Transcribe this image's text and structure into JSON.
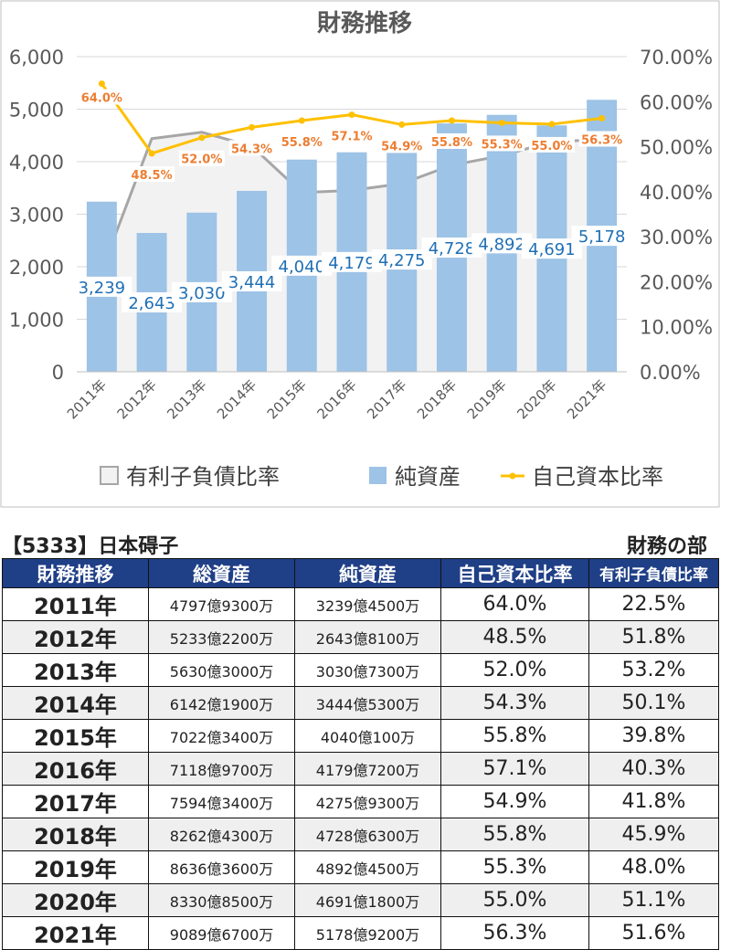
{
  "chart_data": {
    "type": "bar+line",
    "title": "財務推移",
    "categories": [
      "2011年",
      "2012年",
      "2013年",
      "2014年",
      "2015年",
      "2016年",
      "2017年",
      "2018年",
      "2019年",
      "2020年",
      "2021年"
    ],
    "left_axis": {
      "min": 0,
      "max": 6000,
      "ticks": [
        "0",
        "1,000",
        "2,000",
        "3,000",
        "4,000",
        "5,000",
        "6,000"
      ]
    },
    "right_axis": {
      "min": 0,
      "max": 70,
      "ticks": [
        "0.00%",
        "10.00%",
        "20.00%",
        "30.00%",
        "40.00%",
        "50.00%",
        "60.00%",
        "70.00%"
      ]
    },
    "series": [
      {
        "name": "有利子負債比率",
        "type": "area",
        "axis": "right",
        "color": "#a6a6a6",
        "values": [
          22.5,
          51.8,
          53.2,
          50.1,
          39.8,
          40.3,
          41.8,
          45.9,
          48.0,
          51.1,
          51.6
        ]
      },
      {
        "name": "純資産",
        "type": "bar",
        "axis": "left",
        "color": "#9dc3e6",
        "values": [
          3239,
          2643,
          3030,
          3444,
          4040,
          4179,
          4275,
          4728,
          4892,
          4691,
          5178
        ],
        "labels": [
          "3,239",
          "2,643",
          "3,030",
          "3,444",
          "4,040",
          "4,179",
          "4,275",
          "4,728",
          "4,892",
          "4,691",
          "5,178"
        ]
      },
      {
        "name": "自己資本比率",
        "type": "line",
        "axis": "right",
        "color": "#ffc000",
        "label_color": "#ed7d31",
        "values": [
          64.0,
          48.5,
          52.0,
          54.3,
          55.8,
          57.1,
          54.9,
          55.8,
          55.3,
          55.0,
          56.3
        ],
        "labels": [
          "64.0%",
          "48.5%",
          "52.0%",
          "54.3%",
          "55.8%",
          "57.1%",
          "54.9%",
          "55.8%",
          "55.3%",
          "55.0%",
          "56.3%"
        ]
      }
    ],
    "legend_position": "bottom",
    "grid": true
  },
  "company": "【5333】日本碍子",
  "section": "財務の部",
  "table": {
    "headers": [
      "財務推移",
      "総資産",
      "純資産",
      "自己資本比率",
      "有利子負債比率"
    ],
    "rows": [
      [
        "2011年",
        "4797億9300万",
        "3239億4500万",
        "64.0%",
        "22.5%"
      ],
      [
        "2012年",
        "5233億2200万",
        "2643億8100万",
        "48.5%",
        "51.8%"
      ],
      [
        "2013年",
        "5630億3000万",
        "3030億7300万",
        "52.0%",
        "53.2%"
      ],
      [
        "2014年",
        "6142億1900万",
        "3444億5300万",
        "54.3%",
        "50.1%"
      ],
      [
        "2015年",
        "7022億3400万",
        "4040億100万",
        "55.8%",
        "39.8%"
      ],
      [
        "2016年",
        "7118億9700万",
        "4179億7200万",
        "57.1%",
        "40.3%"
      ],
      [
        "2017年",
        "7594億3400万",
        "4275億9300万",
        "54.9%",
        "41.8%"
      ],
      [
        "2018年",
        "8262億4300万",
        "4728億6300万",
        "55.8%",
        "45.9%"
      ],
      [
        "2019年",
        "8636億3600万",
        "4892億4500万",
        "55.3%",
        "48.0%"
      ],
      [
        "2020年",
        "8330億8500万",
        "4691億1800万",
        "55.0%",
        "51.1%"
      ],
      [
        "2021年",
        "9089億6700万",
        "5178億9200万",
        "56.3%",
        "51.6%"
      ]
    ]
  }
}
